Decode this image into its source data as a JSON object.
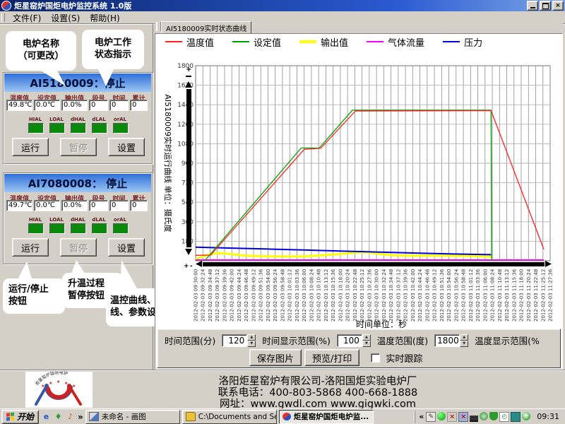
{
  "window": {
    "title": "炬星窑炉国炬电炉监控系统 1.0版",
    "buttons": [
      "minimize",
      "maximize",
      "close"
    ]
  },
  "menu": {
    "items": [
      "文件(F)",
      "设置(S)",
      "帮助(H)"
    ]
  },
  "callouts": {
    "furnace_name": "电炉名称\n（可更改）",
    "status_indicator": "电炉工作\n状态指示",
    "run_stop": "运行/停止\n按钮",
    "pause": "升温过程\n暂停按钮",
    "settings": "温控曲线、历史曲线、参数设置等等"
  },
  "furnaces": [
    {
      "title": "AI5180009：停止",
      "fields": [
        {
          "label": "温度值",
          "value": "49.8℃"
        },
        {
          "label": "设定值",
          "value": "0.0℃"
        },
        {
          "label": "输出值",
          "value": "0.0%"
        },
        {
          "label": "段号",
          "value": "0"
        },
        {
          "label": "时间",
          "value": "0"
        },
        {
          "label": "累计",
          "value": "0"
        }
      ],
      "alarms": [
        "HIAL",
        "LOAL",
        "dHAL",
        "dLAL",
        "orAL"
      ],
      "alarm_color": "#0a8a0a",
      "buttons": {
        "run": "运行",
        "pause": "暂停",
        "settings": "设置"
      }
    },
    {
      "title": "AI7080008： 停止",
      "fields": [
        {
          "label": "温度值",
          "value": "49.7℃"
        },
        {
          "label": "设定值",
          "value": "0.0℃"
        },
        {
          "label": "输出值",
          "value": "0.0%"
        },
        {
          "label": "段号",
          "value": "0"
        },
        {
          "label": "时间",
          "value": "0"
        },
        {
          "label": "累计",
          "value": "0"
        }
      ],
      "alarms": [
        "HIAL",
        "LOAL",
        "dHAL",
        "dLAL",
        "orAL"
      ],
      "alarm_color": "#0a8a0a",
      "buttons": {
        "run": "运行",
        "pause": "暂停",
        "settings": "设置"
      }
    }
  ],
  "chart_tab": "AI5180009实时状态曲线",
  "chart_data": {
    "type": "line",
    "title": "AI5180009实时状态曲线",
    "ylabel": "AI5180009实时运行曲线 单位：摄氏度",
    "xlabel": "时间单位：秒",
    "ylim": [
      0,
      1800
    ],
    "y_ticks": [
      1800,
      1620,
      1440,
      1260,
      1080,
      900,
      720,
      540,
      360,
      180
    ],
    "grid": "both",
    "legend_position": "top",
    "x_tick_label_prefix": "2012-02-03",
    "x_tick_interval_min": 2.4,
    "x_tick_times": [
      "09:30:00",
      "09:32:24",
      "09:34:48",
      "09:37:12",
      "09:39:36",
      "09:42:00",
      "09:44:24",
      "09:46:48",
      "09:49:12",
      "09:51:36",
      "09:54:00",
      "09:56:24",
      "09:58:48",
      "10:01:12",
      "10:03:36",
      "10:06:00",
      "10:08:24",
      "10:10:48",
      "10:13:12",
      "10:15:36",
      "10:18:00",
      "10:20:24",
      "10:22:48",
      "10:25:12",
      "10:27:36",
      "10:30:00",
      "10:32:24",
      "10:34:48",
      "10:37:12",
      "10:39:36",
      "10:42:00",
      "10:44:24",
      "10:46:48",
      "10:49:12",
      "10:51:36",
      "10:54:00",
      "10:56:24",
      "10:58:48",
      "11:01:12",
      "11:03:36",
      "11:06:00",
      "11:08:24",
      "11:10:48",
      "11:13:12",
      "11:15:36",
      "11:18:00",
      "11:20:24",
      "11:22:48",
      "11:25:12",
      "11:27:36"
    ],
    "x_point_unit": "minutes from 09:30:00",
    "series": [
      {
        "name": "温度值",
        "color": "#ff2020",
        "width": 1.3,
        "points": [
          [
            0,
            50
          ],
          [
            5,
            52
          ],
          [
            36,
            1028
          ],
          [
            41.5,
            1038
          ],
          [
            53,
            1382
          ],
          [
            98,
            1386
          ],
          [
            115.5,
            105
          ]
        ]
      },
      {
        "name": "设定值",
        "color": "#00a000",
        "width": 1.3,
        "points": [
          [
            3,
            0
          ],
          [
            35,
            1040
          ],
          [
            41,
            1040
          ],
          [
            52,
            1390
          ],
          [
            98,
            1390
          ],
          [
            98.2,
            2
          ]
        ]
      },
      {
        "name": "输出值",
        "color": "#ffff00",
        "width": 3,
        "points": [
          [
            0,
            14
          ],
          [
            3,
            48
          ],
          [
            6,
            66
          ],
          [
            9,
            70
          ],
          [
            13,
            57
          ],
          [
            17,
            46
          ],
          [
            22,
            42
          ],
          [
            30,
            40
          ],
          [
            36,
            40
          ],
          [
            42,
            50
          ],
          [
            47,
            60
          ],
          [
            51,
            70
          ],
          [
            54,
            76
          ],
          [
            57,
            76
          ],
          [
            61,
            64
          ],
          [
            65,
            52
          ],
          [
            71,
            46
          ],
          [
            78,
            48
          ],
          [
            85,
            46
          ],
          [
            92,
            43
          ],
          [
            98,
            38
          ]
        ]
      },
      {
        "name": "气体流量",
        "color": "#ff00ff",
        "width": 1.6,
        "points": [
          [
            0,
            8
          ],
          [
            115.5,
            8
          ]
        ]
      },
      {
        "name": "压力",
        "color": "#0000e0",
        "width": 2,
        "points": [
          [
            0,
            126
          ],
          [
            12,
            117
          ],
          [
            24,
            108
          ],
          [
            36,
            99
          ],
          [
            48,
            90
          ],
          [
            60,
            81
          ],
          [
            72,
            72
          ],
          [
            84,
            64
          ],
          [
            93,
            59
          ],
          [
            98,
            56
          ]
        ]
      }
    ]
  },
  "controls": {
    "time_range_label": "时间范围(分)",
    "time_range_value": "120",
    "time_display_label": "时间显示范围(%)",
    "time_display_value": "100",
    "temp_range_label": "温度范围(度)",
    "temp_range_value": "1800",
    "temp_display_label": "温度显示范围(%",
    "save_button": "保存图片",
    "print_button": "预览/打印",
    "track_checkbox": "实时跟踪",
    "track_checked": false
  },
  "time_unit_note": "时间单位：秒",
  "footer": {
    "company": "洛阳炬星窑炉有限公司-洛阳国炬实验电炉厂",
    "phone": "联系电话：400-803-5868 400-668-1888",
    "web": "网址：www.gwdl.com  www.gigwki.com",
    "logo_text": "炬星窑炉国炬电炉"
  },
  "taskbar": {
    "start_label": "开始",
    "quicklaunch": [
      "ie-icon",
      "messenger-icon",
      "media-icon"
    ],
    "overflow_chevron": "»",
    "tasks": [
      {
        "label": "未命名 - 画图",
        "icon": "paint-icon",
        "active": false
      },
      {
        "label": "C:\\Documents and Se...",
        "icon": "folder-icon",
        "active": false
      },
      {
        "label": "炬星窑炉国炬电炉监...",
        "icon": "app-icon",
        "active": true
      }
    ],
    "tray_chevron": "«",
    "tray_icons": [
      "language-pen-icon",
      "green-ball-icon",
      "red-x-icon",
      "red-x2-icon",
      "signal-bars-icon",
      "globe-icon",
      "shield-icon",
      "doc-clock-icon",
      "teal-panel-icon",
      "green-sync-icon"
    ],
    "clock": "09:31"
  }
}
